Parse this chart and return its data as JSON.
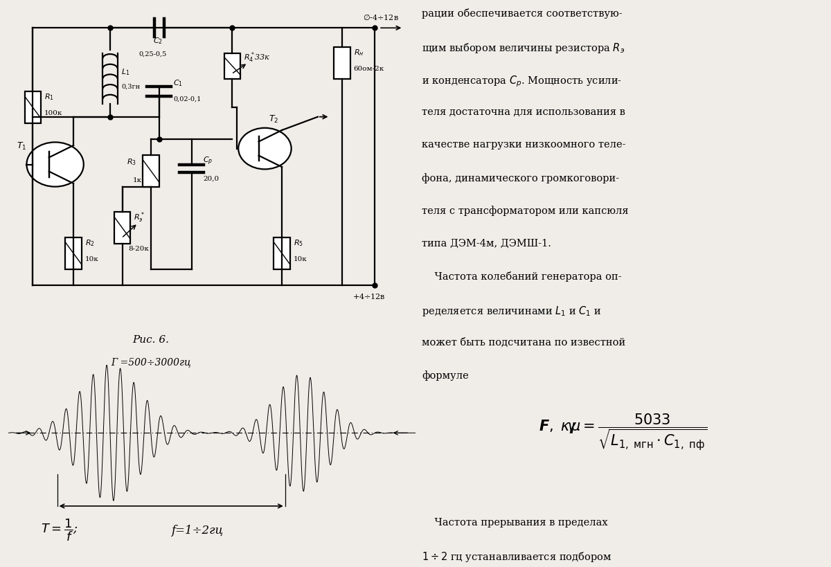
{
  "background_color": "#f0ede8",
  "fig_caption": "Рис. 6.",
  "waveform_label_top": "Г =500÷3000гц",
  "waveform_label_bottom": "f=1÷2гц"
}
